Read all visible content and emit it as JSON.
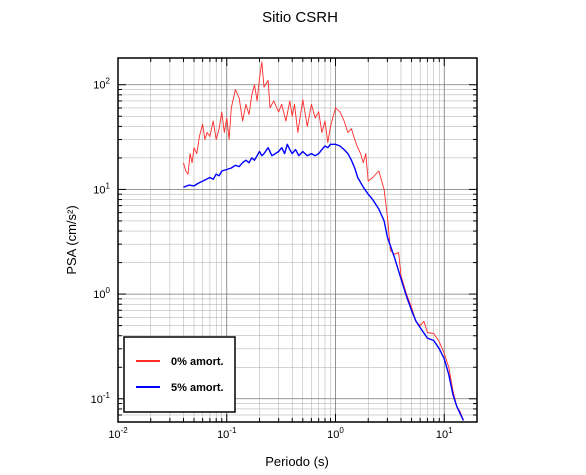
{
  "chart_data": {
    "type": "line",
    "title": "Sitio CSRH",
    "xlabel": "Periodo (s)",
    "ylabel": "PSA (cm/s²)",
    "x_scale": "log",
    "y_scale": "log",
    "xlim": [
      0.01,
      20
    ],
    "ylim": [
      0.06,
      180
    ],
    "grid": true,
    "legend_position": "bottom-left",
    "x_ticks": [
      {
        "value": 0.01,
        "base": "10",
        "exp": "-2"
      },
      {
        "value": 0.1,
        "base": "10",
        "exp": "-1"
      },
      {
        "value": 1,
        "base": "10",
        "exp": "0"
      },
      {
        "value": 10,
        "base": "10",
        "exp": "1"
      }
    ],
    "y_ticks": [
      {
        "value": 0.1,
        "base": "10",
        "exp": "-1"
      },
      {
        "value": 1,
        "base": "10",
        "exp": "0"
      },
      {
        "value": 10,
        "base": "10",
        "exp": "1"
      },
      {
        "value": 100,
        "base": "10",
        "exp": "2"
      }
    ],
    "series": [
      {
        "name": "0% amort.",
        "color": "#ff2a2a",
        "points": [
          [
            0.04,
            18
          ],
          [
            0.042,
            15
          ],
          [
            0.044,
            14
          ],
          [
            0.046,
            22
          ],
          [
            0.048,
            18
          ],
          [
            0.05,
            25
          ],
          [
            0.053,
            22
          ],
          [
            0.056,
            32
          ],
          [
            0.06,
            42
          ],
          [
            0.063,
            30
          ],
          [
            0.066,
            35
          ],
          [
            0.07,
            32
          ],
          [
            0.075,
            45
          ],
          [
            0.08,
            30
          ],
          [
            0.085,
            38
          ],
          [
            0.09,
            55
          ],
          [
            0.095,
            35
          ],
          [
            0.1,
            48
          ],
          [
            0.105,
            30
          ],
          [
            0.11,
            60
          ],
          [
            0.12,
            90
          ],
          [
            0.13,
            75
          ],
          [
            0.14,
            45
          ],
          [
            0.15,
            65
          ],
          [
            0.16,
            52
          ],
          [
            0.17,
            80
          ],
          [
            0.18,
            100
          ],
          [
            0.19,
            70
          ],
          [
            0.2,
            115
          ],
          [
            0.21,
            165
          ],
          [
            0.22,
            95
          ],
          [
            0.24,
            110
          ],
          [
            0.25,
            60
          ],
          [
            0.27,
            70
          ],
          [
            0.3,
            55
          ],
          [
            0.32,
            65
          ],
          [
            0.35,
            45
          ],
          [
            0.38,
            70
          ],
          [
            0.4,
            50
          ],
          [
            0.42,
            65
          ],
          [
            0.45,
            35
          ],
          [
            0.5,
            72
          ],
          [
            0.55,
            40
          ],
          [
            0.6,
            65
          ],
          [
            0.65,
            48
          ],
          [
            0.7,
            55
          ],
          [
            0.75,
            35
          ],
          [
            0.8,
            45
          ],
          [
            0.85,
            28
          ],
          [
            0.9,
            40
          ],
          [
            1.0,
            60
          ],
          [
            1.1,
            55
          ],
          [
            1.2,
            45
          ],
          [
            1.3,
            35
          ],
          [
            1.4,
            38
          ],
          [
            1.5,
            30
          ],
          [
            1.6,
            25
          ],
          [
            1.7,
            22
          ],
          [
            1.8,
            18
          ],
          [
            1.9,
            22
          ],
          [
            2.0,
            12
          ],
          [
            2.2,
            13
          ],
          [
            2.5,
            15
          ],
          [
            2.8,
            10
          ],
          [
            3.0,
            5.5
          ],
          [
            3.2,
            2.6
          ],
          [
            3.5,
            2.4
          ],
          [
            3.8,
            2.5
          ],
          [
            4.0,
            1.5
          ],
          [
            4.5,
            1.0
          ],
          [
            5.0,
            0.75
          ],
          [
            5.5,
            0.55
          ],
          [
            6.0,
            0.5
          ],
          [
            6.5,
            0.55
          ],
          [
            7.0,
            0.43
          ],
          [
            8.0,
            0.42
          ],
          [
            9.0,
            0.35
          ],
          [
            10.0,
            0.27
          ],
          [
            11.0,
            0.2
          ],
          [
            12.0,
            0.12
          ],
          [
            13.0,
            0.085
          ],
          [
            14.0,
            0.075
          ],
          [
            15.0,
            0.063
          ]
        ]
      },
      {
        "name": "5% amort.",
        "color": "#0000ff",
        "points": [
          [
            0.04,
            10.5
          ],
          [
            0.045,
            11
          ],
          [
            0.05,
            10.8
          ],
          [
            0.055,
            11.5
          ],
          [
            0.06,
            12
          ],
          [
            0.065,
            12.5
          ],
          [
            0.07,
            13
          ],
          [
            0.075,
            12.5
          ],
          [
            0.08,
            14
          ],
          [
            0.085,
            13.5
          ],
          [
            0.09,
            15
          ],
          [
            0.1,
            15.5
          ],
          [
            0.11,
            16
          ],
          [
            0.12,
            17
          ],
          [
            0.13,
            16.5
          ],
          [
            0.14,
            18
          ],
          [
            0.15,
            19
          ],
          [
            0.16,
            18
          ],
          [
            0.17,
            20
          ],
          [
            0.18,
            19
          ],
          [
            0.19,
            21
          ],
          [
            0.2,
            23
          ],
          [
            0.21,
            21
          ],
          [
            0.22,
            22
          ],
          [
            0.24,
            25
          ],
          [
            0.26,
            21
          ],
          [
            0.28,
            22
          ],
          [
            0.3,
            23
          ],
          [
            0.32,
            25
          ],
          [
            0.34,
            22
          ],
          [
            0.36,
            27
          ],
          [
            0.38,
            24
          ],
          [
            0.4,
            22
          ],
          [
            0.43,
            24
          ],
          [
            0.46,
            21
          ],
          [
            0.5,
            23
          ],
          [
            0.55,
            21
          ],
          [
            0.6,
            22
          ],
          [
            0.65,
            21
          ],
          [
            0.7,
            22
          ],
          [
            0.75,
            24
          ],
          [
            0.8,
            26
          ],
          [
            0.85,
            25
          ],
          [
            0.9,
            27
          ],
          [
            1.0,
            27
          ],
          [
            1.1,
            26
          ],
          [
            1.2,
            24
          ],
          [
            1.3,
            22
          ],
          [
            1.4,
            19
          ],
          [
            1.5,
            16
          ],
          [
            1.6,
            13
          ],
          [
            1.8,
            10.5
          ],
          [
            2.0,
            9
          ],
          [
            2.2,
            8
          ],
          [
            2.5,
            6.5
          ],
          [
            2.8,
            5
          ],
          [
            3.0,
            3.5
          ],
          [
            3.5,
            2.2
          ],
          [
            4.0,
            1.4
          ],
          [
            4.5,
            0.95
          ],
          [
            5.0,
            0.7
          ],
          [
            5.5,
            0.55
          ],
          [
            6.0,
            0.48
          ],
          [
            7.0,
            0.38
          ],
          [
            8.0,
            0.36
          ],
          [
            9.0,
            0.3
          ],
          [
            10.0,
            0.24
          ],
          [
            11.0,
            0.17
          ],
          [
            12.0,
            0.11
          ],
          [
            13.0,
            0.085
          ],
          [
            14.0,
            0.072
          ],
          [
            15.0,
            0.062
          ]
        ]
      }
    ]
  }
}
